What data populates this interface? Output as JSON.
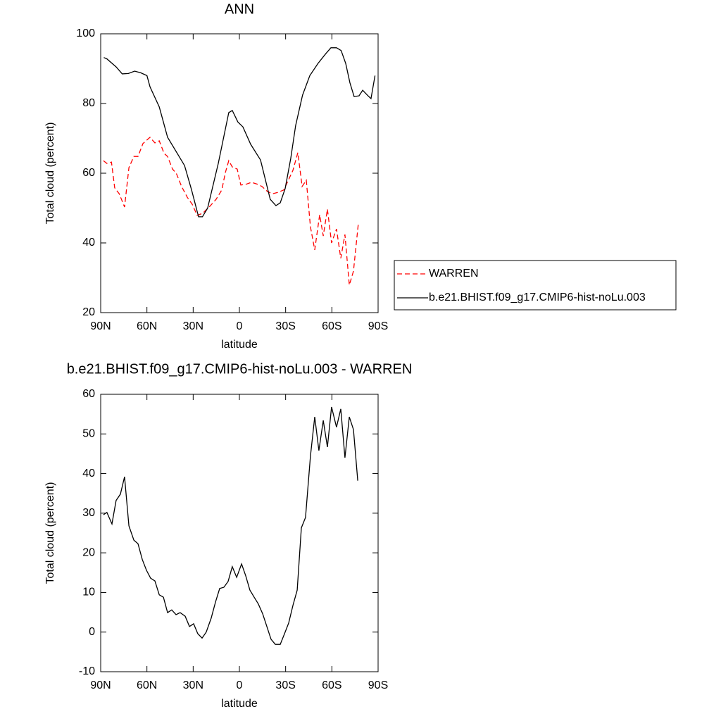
{
  "chart_data": [
    {
      "type": "line",
      "title": "ANN",
      "x_label": "latitude",
      "y_label": "Total cloud (percent)",
      "xlim": [
        90,
        -90
      ],
      "ylim": [
        20,
        100
      ],
      "xticks": [
        {
          "value": 90,
          "label": "90N"
        },
        {
          "value": 60,
          "label": "60N"
        },
        {
          "value": 30,
          "label": "30N"
        },
        0,
        {
          "value": -30,
          "label": "30S"
        },
        {
          "value": -60,
          "label": "60S"
        },
        {
          "value": -90,
          "label": "90S"
        }
      ],
      "yticks": [
        20,
        40,
        60,
        80,
        100
      ],
      "legend": "right",
      "series": [
        {
          "name": "WARREN",
          "color": "#ff0000",
          "dash": true,
          "x": [
            88.2,
            86,
            83,
            80.9,
            78,
            74.5,
            71.7,
            68.5,
            65.8,
            62.6,
            58,
            54.8,
            52,
            48.9,
            46.6,
            43.4,
            41,
            37.5,
            33.8,
            30.6,
            27.4,
            23.8,
            19.2,
            15.1,
            11.4,
            9.1,
            6.9,
            4.6,
            1.4,
            -0.9,
            -4.1,
            -7.8,
            -11.9,
            -14.6,
            -18.3,
            -21.5,
            -25.1,
            -28.8,
            -32,
            -34.7,
            -37.9,
            -40.7,
            -43.4,
            -46.1,
            -48.9,
            -52.1,
            -54.4,
            -57.1,
            -59.8,
            -63,
            -65.8,
            -68.5,
            -71.3,
            -74,
            -77.2
          ],
          "values": [
            63.6,
            62.8,
            63.2,
            55.8,
            54.1,
            50.3,
            61.6,
            64.8,
            64.8,
            68.5,
            70.3,
            68.7,
            69.3,
            65.7,
            64.8,
            61.2,
            60,
            56.2,
            53.1,
            51.1,
            47.9,
            48.5,
            50.5,
            52.5,
            55.2,
            60.2,
            63.6,
            61.8,
            61.2,
            56.6,
            56.8,
            57.4,
            56.8,
            56.2,
            54.7,
            54.1,
            54.5,
            55.2,
            58.2,
            60.8,
            65.9,
            56.2,
            58,
            44.6,
            38,
            48.1,
            42,
            49.7,
            40,
            44,
            35.6,
            42.4,
            27.9,
            31.9,
            45.7
          ]
        },
        {
          "name": "b.e21.BHIST.f09_g17.CMIP6-hist-noLu.003",
          "color": "#000000",
          "dash": false,
          "x": [
            88,
            86,
            80,
            76,
            72,
            68,
            64,
            60,
            58,
            52,
            46.6,
            35.6,
            31,
            26.5,
            24,
            20.6,
            13.7,
            6.9,
            4.6,
            1,
            -2.3,
            -7.3,
            -13.7,
            -20,
            -23.7,
            -26.5,
            -29.7,
            -33.3,
            -36.5,
            -41,
            -45.7,
            -51,
            -55.7,
            -59.4,
            -63,
            -66,
            -69,
            -71.7,
            -74.4,
            -77.6,
            -80,
            -83,
            -85.4,
            -88
          ],
          "values": [
            93.2,
            92.8,
            90.5,
            88.5,
            88.6,
            89.3,
            88.8,
            88,
            84.8,
            79,
            70.3,
            62.2,
            55.2,
            47.5,
            47.5,
            50,
            62.8,
            77.4,
            78,
            74.7,
            73.3,
            68.3,
            63.8,
            52.5,
            50.7,
            51.5,
            55.6,
            64.2,
            73.7,
            82.4,
            88,
            91.5,
            94.1,
            96,
            96,
            95.2,
            91.5,
            86,
            82,
            82.2,
            83.8,
            82.4,
            81.4,
            88
          ]
        }
      ]
    },
    {
      "type": "line",
      "title": "b.e21.BHIST.f09_g17.CMIP6-hist-noLu.003 - WARREN",
      "x_label": "latitude",
      "y_label": "Total cloud (percent)",
      "xlim": [
        90,
        -90
      ],
      "ylim": [
        -10,
        60
      ],
      "xticks": [
        {
          "value": 90,
          "label": "90N"
        },
        {
          "value": 60,
          "label": "60N"
        },
        {
          "value": 30,
          "label": "30N"
        },
        0,
        {
          "value": -30,
          "label": "30S"
        },
        {
          "value": -60,
          "label": "60S"
        },
        {
          "value": -90,
          "label": "90S"
        }
      ],
      "yticks": [
        -10,
        0,
        10,
        20,
        30,
        40,
        50,
        60
      ],
      "series": [
        {
          "color": "#000000",
          "dash": false,
          "x": [
            88.2,
            86,
            82.7,
            80,
            77.2,
            74.5,
            71.7,
            68.5,
            65.8,
            63,
            60.3,
            57.6,
            54.8,
            52,
            49.3,
            46.6,
            43.9,
            41.1,
            38.4,
            35.2,
            32.4,
            29.7,
            27,
            24.2,
            21.5,
            18.3,
            15.5,
            12.8,
            10.1,
            7.3,
            4.6,
            1.8,
            -1.4,
            -4.1,
            -6.8,
            -9.6,
            -12.3,
            -15.1,
            -17.8,
            -20.5,
            -23.3,
            -26.5,
            -29.3,
            -32,
            -34.7,
            -37.5,
            -40.2,
            -42.9,
            -46.1,
            -48.9,
            -51.6,
            -54.4,
            -57.1,
            -59.8,
            -63,
            -65.8,
            -68.5,
            -71.3,
            -74,
            -76.8
          ],
          "values": [
            29.6,
            30.2,
            27.3,
            33.2,
            34.8,
            39.2,
            26.8,
            23.2,
            22.3,
            18.3,
            15.6,
            13.6,
            12.9,
            9.4,
            8.8,
            4.9,
            5.6,
            4.4,
            4.9,
            4,
            1.4,
            2.1,
            -0.4,
            -1.5,
            0,
            3.5,
            7.6,
            11,
            11.3,
            12.8,
            16.5,
            13.8,
            17.2,
            14.2,
            10.6,
            8.8,
            7.1,
            4.6,
            1.4,
            -1.8,
            -3.1,
            -3.1,
            -0.4,
            2.3,
            6.7,
            10.6,
            26.3,
            28.9,
            44.4,
            54.3,
            45.8,
            53.4,
            46.7,
            56.8,
            51.7,
            56.3,
            44,
            54.3,
            51.1,
            38.2
          ]
        }
      ]
    }
  ]
}
